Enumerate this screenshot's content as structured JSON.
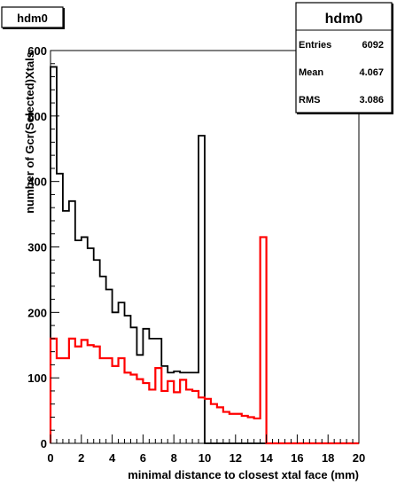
{
  "chart_data": {
    "type": "histogram",
    "title": "hdm0",
    "xlabel": "minimal distance to closest xtal face (mm)",
    "ylabel": "number of Gcr(Selected)Xtals",
    "xlim": [
      0,
      20
    ],
    "ylim": [
      0,
      600
    ],
    "xticks": [
      0,
      2,
      4,
      6,
      8,
      10,
      12,
      14,
      16,
      18,
      20
    ],
    "yticks": [
      0,
      100,
      200,
      300,
      400,
      500,
      600
    ],
    "bin_width": 0.4,
    "series": [
      {
        "color": "#000000",
        "values": [
          575,
          412,
          355,
          370,
          310,
          315,
          298,
          280,
          255,
          235,
          200,
          215,
          195,
          177,
          135,
          175,
          160,
          160,
          118,
          108,
          110,
          108,
          108,
          108,
          470,
          0,
          0,
          0,
          0,
          0,
          0,
          0,
          0,
          0,
          0,
          0,
          0,
          0,
          0,
          0,
          0,
          0,
          0,
          0,
          0,
          0,
          0,
          0,
          0,
          0
        ]
      },
      {
        "color": "#ff0000",
        "values": [
          160,
          130,
          130,
          160,
          148,
          158,
          150,
          148,
          130,
          130,
          118,
          130,
          108,
          105,
          98,
          92,
          82,
          115,
          80,
          95,
          78,
          97,
          82,
          80,
          70,
          68,
          60,
          55,
          48,
          45,
          45,
          42,
          40,
          38,
          315,
          0,
          0,
          0,
          0,
          0,
          0,
          0,
          0,
          0,
          0,
          0,
          0,
          0,
          0,
          0
        ]
      }
    ]
  },
  "title_box": {
    "label": "hdm0"
  },
  "stats_box": {
    "title": "hdm0",
    "rows": [
      {
        "key": "Entries",
        "value": "6092"
      },
      {
        "key": "Mean",
        "value": "4.067"
      },
      {
        "key": "RMS",
        "value": "3.086"
      }
    ]
  }
}
